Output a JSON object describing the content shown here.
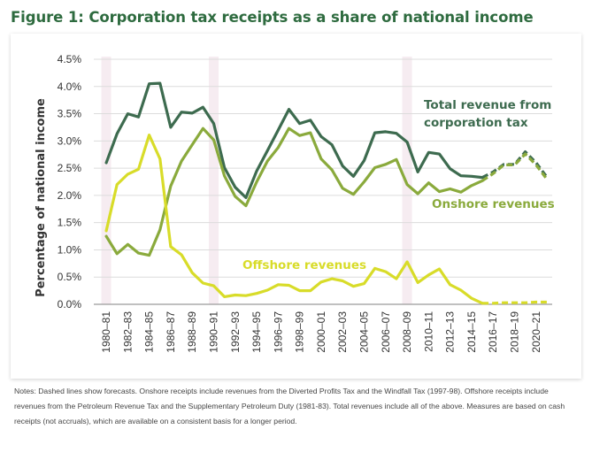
{
  "title": "Figure 1: Corporation tax receipts as a share of national income",
  "notes": "Notes: Dashed lines show forecasts. Onshore receipts include revenues from the Diverted Profits Tax and the Windfall Tax (1997-98). Offshore receipts include revenues from the Petroleum Revenue Tax and the Supplementary Petroleum Duty (1981-83). Total revenues include all of the above. Measures are based on cash receipts (not accruals), which are available on a consistent basis for a longer period.",
  "chart_data": {
    "type": "line",
    "ylabel": "Percentage of national income",
    "xlabel": "",
    "ylim": [
      0,
      4.5
    ],
    "y_ticks": [
      "0.0%",
      "0.5%",
      "1.0%",
      "1.5%",
      "2.0%",
      "2.5%",
      "3.0%",
      "3.5%",
      "4.0%",
      "4.5%"
    ],
    "grid": true,
    "x": [
      "1980–81",
      "1981–82",
      "1982–83",
      "1983–84",
      "1984–85",
      "1985–86",
      "1986–87",
      "1987–88",
      "1988–89",
      "1989–90",
      "1990–91",
      "1991–92",
      "1992–93",
      "1993–94",
      "1994–95",
      "1995–96",
      "1996–97",
      "1997–98",
      "1998–99",
      "1999–00",
      "2000–01",
      "2001–02",
      "2002–03",
      "2003–04",
      "2004–05",
      "2005–06",
      "2006–07",
      "2007–08",
      "2008–09",
      "2009–10",
      "2010–11",
      "2011–12",
      "2012–13",
      "2013–14",
      "2014–15",
      "2015–16",
      "2016–17",
      "2017–18",
      "2018–19",
      "2019–20",
      "2020–21",
      "2021–22"
    ],
    "x_tick_labels": [
      "1980–81",
      "1982–83",
      "1984–85",
      "1986–87",
      "1988–89",
      "1990–91",
      "1992–93",
      "1994–95",
      "1996–97",
      "1998–99",
      "2000–01",
      "2002–03",
      "2004–05",
      "2006–07",
      "2008–09",
      "2010–11",
      "2012–13",
      "2014–15",
      "2016–17",
      "2018–19",
      "2020–21"
    ],
    "recession_bands": [
      "1980–81",
      "1990–91",
      "2008–09"
    ],
    "forecast_from": "2015–16",
    "series": [
      {
        "name": "Total revenue from corporation tax",
        "label_lines": [
          "Total revenue from",
          "corporation tax"
        ],
        "color": "#3d6b4f",
        "values": [
          2.6,
          3.13,
          3.5,
          3.44,
          4.05,
          4.06,
          3.25,
          3.53,
          3.51,
          3.62,
          3.32,
          2.51,
          2.15,
          1.96,
          2.45,
          2.82,
          3.2,
          3.58,
          3.32,
          3.38,
          3.08,
          2.93,
          2.54,
          2.35,
          2.64,
          3.15,
          3.17,
          3.14,
          2.98,
          2.43,
          2.79,
          2.76,
          2.49,
          2.36,
          2.35,
          2.33,
          2.43,
          2.57,
          2.57,
          2.8,
          2.6,
          2.34
        ]
      },
      {
        "name": "Onshore revenues",
        "label_lines": [
          "Onshore revenues"
        ],
        "color": "#8aaa3c",
        "values": [
          1.25,
          0.93,
          1.1,
          0.94,
          0.9,
          1.37,
          2.17,
          2.63,
          2.93,
          3.23,
          3.02,
          2.36,
          1.98,
          1.81,
          2.25,
          2.63,
          2.88,
          3.23,
          3.1,
          3.15,
          2.67,
          2.47,
          2.13,
          2.02,
          2.25,
          2.51,
          2.57,
          2.66,
          2.2,
          2.03,
          2.23,
          2.07,
          2.12,
          2.06,
          2.18,
          2.27,
          2.4,
          2.56,
          2.56,
          2.76,
          2.56,
          2.3
        ]
      },
      {
        "name": "Offshore revenues",
        "label_lines": [
          "Offshore revenues"
        ],
        "color": "#d8dc29",
        "values": [
          1.35,
          2.2,
          2.39,
          2.48,
          3.11,
          2.67,
          1.06,
          0.91,
          0.58,
          0.39,
          0.34,
          0.14,
          0.17,
          0.16,
          0.2,
          0.26,
          0.36,
          0.35,
          0.25,
          0.25,
          0.41,
          0.47,
          0.43,
          0.33,
          0.38,
          0.66,
          0.6,
          0.47,
          0.78,
          0.4,
          0.54,
          0.65,
          0.36,
          0.26,
          0.11,
          0.02,
          0.02,
          0.03,
          0.03,
          0.03,
          0.04,
          0.04
        ]
      }
    ]
  }
}
